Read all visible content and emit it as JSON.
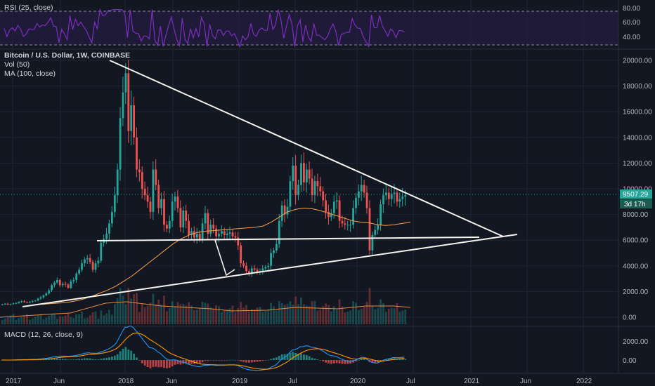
{
  "colors": {
    "background": "#131722",
    "grid": "#1f2533",
    "text": "#b2b5be",
    "up": "#26a69a",
    "down": "#ef5350",
    "rsi": "#7b2fbe",
    "rsi_band": "#2a1d4a",
    "ma": "#f7a34d",
    "macd": "#2196f3",
    "signal": "#ff9800",
    "trendline": "#f5f5f0",
    "price_badge": "#26a69a"
  },
  "panes": {
    "rsi_label": "RSI (25, close)",
    "main_title": "Bitcoin / U.S. Dollar, 1W, COINBASE",
    "vol_label": "Vol (50)",
    "ma_label": "MA (100, close)",
    "macd_label": "MACD (12, 26, close, 9)"
  },
  "price_badge": {
    "value": "9507.29",
    "countdown": "3d 17h"
  },
  "rsi_axis": [
    "80.00",
    "60.00",
    "40.00"
  ],
  "price_axis": [
    "20000.00",
    "18000.00",
    "16000.00",
    "14000.00",
    "12000.00",
    "10000.00",
    "8000.00",
    "6000.00",
    "4000.00",
    "2000.00",
    "0.00"
  ],
  "macd_axis": [
    "2000.00",
    "0.00"
  ],
  "time_axis": [
    "2017",
    "Jun",
    "2018",
    "Jun",
    "2019",
    "Jul",
    "2020",
    "Jul",
    "2021",
    "Jun",
    "2022"
  ],
  "chart_data": {
    "type": "candlestick",
    "symbol": "BTCUSD",
    "interval": "1W",
    "exchange": "COINBASE",
    "ylim": [
      0,
      20000
    ],
    "last_price": 9507.29,
    "price_series_weekly_close": [
      1000,
      1050,
      990,
      1020,
      1080,
      1100,
      1200,
      1250,
      1180,
      1150,
      1200,
      1250,
      1300,
      1450,
      1550,
      1700,
      1850,
      2100,
      2500,
      2700,
      2900,
      2500,
      2600,
      2550,
      2300,
      2800,
      2900,
      3400,
      3700,
      4200,
      4500,
      4600,
      4300,
      3700,
      4200,
      4400,
      5800,
      6100,
      6500,
      7300,
      8200,
      9500,
      11500,
      15500,
      17500,
      19000,
      14500,
      16500,
      14000,
      11500,
      11300,
      10000,
      9500,
      9000,
      8200,
      11500,
      10300,
      8500,
      9200,
      7200,
      6900,
      7500,
      9000,
      9400,
      8500,
      7000,
      8300,
      7500,
      6400,
      6700,
      6200,
      6500,
      6100,
      7300,
      8100,
      6500,
      7200,
      6900,
      6300,
      6500,
      6700,
      6400,
      6500,
      6600,
      6300,
      6200,
      5600,
      4200,
      4000,
      3600,
      3400,
      3800,
      3700,
      3500,
      3600,
      3800,
      3900,
      4000,
      5000,
      5200,
      5700,
      7500,
      8700,
      8000,
      8600,
      10600,
      11800,
      9500,
      10300,
      12000,
      10500,
      11500,
      10800,
      9500,
      10600,
      10200,
      9800,
      9100,
      8200,
      7800,
      8100,
      9000,
      9100,
      7500,
      7300,
      7200,
      7200,
      7200,
      8500,
      9300,
      9800,
      10300,
      9700,
      8500,
      5200,
      6400,
      6800,
      7200,
      8800,
      9500,
      9700,
      9200,
      9600,
      9700,
      9000,
      9200,
      9400,
      9507
    ],
    "volume_note": "Vol (50)",
    "ma_100_weekly": [
      null,
      null,
      1000,
      1050,
      1100,
      1150,
      1250,
      1400,
      1600,
      1850,
      2100,
      2400,
      2800,
      3200,
      3700,
      4200,
      4700,
      5200,
      5700,
      6100,
      6400,
      6600,
      6700,
      6750,
      6800,
      6850,
      6900,
      6950,
      7000,
      7100,
      7400,
      7800,
      8200,
      8400,
      8500,
      8450,
      8300,
      8100,
      7900,
      7700,
      7500,
      7400,
      7350,
      7200,
      7150,
      7200,
      7300,
      7400
    ],
    "trendlines": [
      {
        "name": "descending resistance",
        "from": [
          "2017-12",
          20000
        ],
        "to": [
          "2021-06",
          6300
        ]
      },
      {
        "name": "horizontal support",
        "from": [
          "2017-11",
          5900
        ],
        "to": [
          "2021-04",
          6200
        ]
      },
      {
        "name": "ascending support",
        "from": [
          "2017-01",
          800
        ],
        "to": [
          "2021-06",
          6300
        ]
      }
    ],
    "rsi": {
      "label": "RSI (25, close)",
      "levels": [
        80,
        60,
        40
      ]
    },
    "macd": {
      "label": "MACD (12, 26, close, 9)",
      "range": [
        -1000,
        3000
      ]
    }
  }
}
